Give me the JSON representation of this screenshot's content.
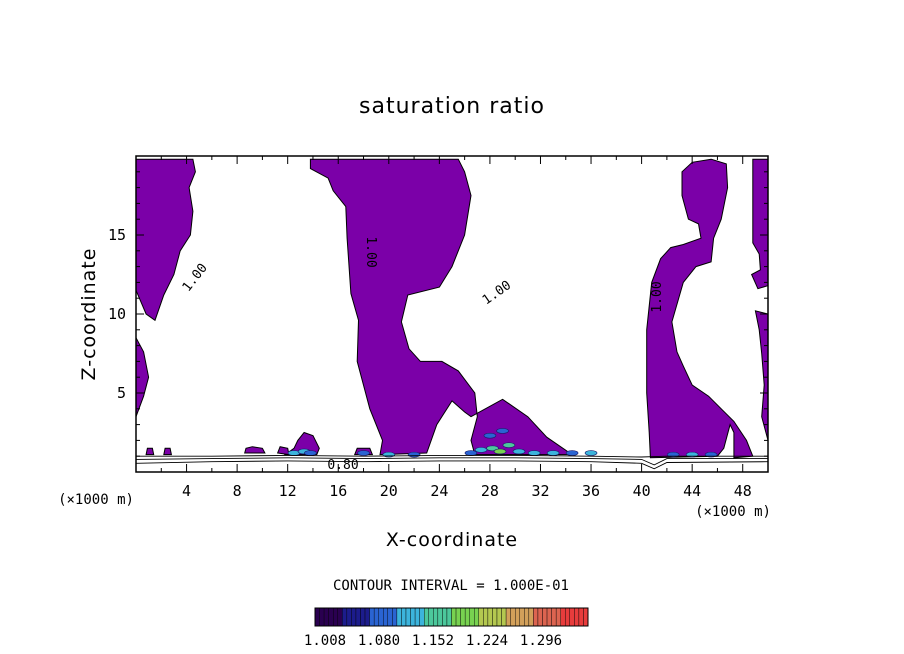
{
  "chart_data": {
    "type": "contour",
    "title": "saturation ratio",
    "xlabel": "X-coordinate",
    "ylabel": "Z-coordinate",
    "x_unit": "(×1000 m)",
    "x_unit_right": "(×1000 m)",
    "xlim": [
      0,
      50
    ],
    "ylim": [
      0,
      20
    ],
    "x_ticks": [
      4,
      8,
      12,
      16,
      20,
      24,
      28,
      32,
      36,
      40,
      44,
      48
    ],
    "y_ticks": [
      5,
      10,
      15
    ],
    "contour_interval_label": "CONTOUR INTERVAL = 1.000E-01",
    "contour_labels": [
      "1.00",
      "1.00",
      "1.00",
      "1.00",
      "0.80"
    ],
    "colorbar_labels": [
      "1.008",
      "1.080",
      "1.152",
      "1.224",
      "1.296"
    ],
    "fill_color": "#7b00a8",
    "colorbar_colors": [
      "#2a0050",
      "#1c1c8c",
      "#2a64d2",
      "#3cb4dc",
      "#4cc89c",
      "#78d250",
      "#b4c850",
      "#d2a05a",
      "#dc6450",
      "#e83c3c"
    ],
    "regions": [
      {
        "name": "left-top",
        "points": [
          [
            0,
            19.8
          ],
          [
            4.5,
            19.8
          ],
          [
            4.7,
            19
          ],
          [
            4.2,
            18
          ],
          [
            4.5,
            16.5
          ],
          [
            4.3,
            15
          ],
          [
            3.5,
            14
          ],
          [
            3,
            12.5
          ],
          [
            2.2,
            11.2
          ],
          [
            1.5,
            9.6
          ],
          [
            0.8,
            10
          ],
          [
            0,
            11.5
          ]
        ]
      },
      {
        "name": "left-low",
        "points": [
          [
            0,
            8.5
          ],
          [
            0.6,
            7.6
          ],
          [
            1,
            6
          ],
          [
            0.6,
            4.8
          ],
          [
            0,
            3.5
          ]
        ]
      },
      {
        "name": "center",
        "points": [
          [
            13.8,
            19.8
          ],
          [
            25.5,
            19.8
          ],
          [
            26,
            19
          ],
          [
            26.5,
            17.5
          ],
          [
            26,
            15
          ],
          [
            25,
            13
          ],
          [
            24,
            11.7
          ],
          [
            21.5,
            11.2
          ],
          [
            21,
            9.5
          ],
          [
            21.6,
            7.8
          ],
          [
            22.5,
            7
          ],
          [
            24.2,
            7
          ],
          [
            25.5,
            6.4
          ],
          [
            26.8,
            5
          ],
          [
            27,
            3.5
          ],
          [
            26.5,
            2
          ],
          [
            26.8,
            1.1
          ],
          [
            34.5,
            1.1
          ],
          [
            32.5,
            2.2
          ],
          [
            31,
            3.5
          ],
          [
            29,
            4.6
          ],
          [
            26.5,
            3.5
          ],
          [
            26,
            3.8
          ],
          [
            25,
            4.5
          ],
          [
            23.8,
            3
          ],
          [
            23,
            1.2
          ],
          [
            19.3,
            1.1
          ],
          [
            19.5,
            2
          ],
          [
            18.5,
            4
          ],
          [
            17.5,
            7
          ],
          [
            17.6,
            9.6
          ],
          [
            17,
            11.3
          ],
          [
            16.7,
            14.8
          ],
          [
            16.6,
            16.8
          ],
          [
            15.6,
            17.8
          ],
          [
            15.2,
            18.6
          ],
          [
            13.8,
            19.2
          ]
        ]
      },
      {
        "name": "right",
        "points": [
          [
            45.5,
            19.8
          ],
          [
            46.7,
            19.5
          ],
          [
            46.8,
            18
          ],
          [
            46.3,
            16
          ],
          [
            45.7,
            14.8
          ],
          [
            45.5,
            13.3
          ],
          [
            44.3,
            13
          ],
          [
            43.3,
            12
          ],
          [
            42.4,
            9.5
          ],
          [
            42.8,
            7.6
          ],
          [
            43.3,
            6.7
          ],
          [
            44,
            5.5
          ],
          [
            45.3,
            4.8
          ],
          [
            46.3,
            4
          ],
          [
            47.3,
            3.2
          ],
          [
            48.3,
            2
          ],
          [
            48.8,
            1
          ],
          [
            47.3,
            0.9
          ],
          [
            47.3,
            2.5
          ],
          [
            47,
            3
          ],
          [
            46.5,
            1.5
          ],
          [
            46,
            1
          ],
          [
            40.7,
            0.9
          ],
          [
            40.6,
            2.5
          ],
          [
            40.4,
            5
          ],
          [
            40.4,
            9
          ],
          [
            40.8,
            12
          ],
          [
            41.5,
            13.5
          ],
          [
            42.3,
            14.2
          ],
          [
            43.3,
            14.4
          ],
          [
            44.7,
            14.8
          ],
          [
            44.5,
            15.7
          ],
          [
            43.7,
            16
          ],
          [
            43.2,
            17.5
          ],
          [
            43.2,
            19
          ],
          [
            44,
            19.6
          ]
        ]
      },
      {
        "name": "right-edge-top",
        "points": [
          [
            48.8,
            19.8
          ],
          [
            50,
            19.8
          ],
          [
            50,
            11.8
          ],
          [
            49.2,
            11.6
          ],
          [
            48.7,
            12.5
          ],
          [
            49.4,
            12.8
          ],
          [
            49.3,
            13.8
          ],
          [
            48.8,
            14.5
          ]
        ]
      },
      {
        "name": "right-edge-low",
        "points": [
          [
            49,
            10.2
          ],
          [
            50,
            10
          ],
          [
            50,
            2
          ],
          [
            49.5,
            3.5
          ],
          [
            49.7,
            5.5
          ],
          [
            49.5,
            7.5
          ],
          [
            49.3,
            9
          ]
        ]
      },
      {
        "name": "blob-13",
        "points": [
          [
            11.8,
            1.1
          ],
          [
            12.5,
            1.5
          ],
          [
            12.8,
            2
          ],
          [
            13.3,
            2.5
          ],
          [
            14,
            2.3
          ],
          [
            14.5,
            1.5
          ],
          [
            14.3,
            1.1
          ]
        ]
      },
      {
        "name": "blob-9",
        "points": [
          [
            8.6,
            1.2
          ],
          [
            8.7,
            1.5
          ],
          [
            9.2,
            1.6
          ],
          [
            10,
            1.5
          ],
          [
            10.2,
            1.2
          ]
        ]
      },
      {
        "name": "blob-17",
        "points": [
          [
            17.3,
            1.1
          ],
          [
            17.5,
            1.5
          ],
          [
            18.5,
            1.5
          ],
          [
            18.7,
            1.1
          ]
        ]
      },
      {
        "name": "blob-12",
        "points": [
          [
            11.2,
            1.2
          ],
          [
            11.4,
            1.6
          ],
          [
            12,
            1.5
          ],
          [
            12.1,
            1.1
          ]
        ]
      },
      {
        "name": "blob-1",
        "points": [
          [
            0.8,
            1.1
          ],
          [
            0.9,
            1.5
          ],
          [
            1.3,
            1.5
          ],
          [
            1.4,
            1.1
          ]
        ]
      },
      {
        "name": "blob-3",
        "points": [
          [
            2.2,
            1.1
          ],
          [
            2.3,
            1.5
          ],
          [
            2.7,
            1.5
          ],
          [
            2.8,
            1.1
          ]
        ]
      }
    ],
    "contours": [
      {
        "name": "band-1",
        "points": [
          [
            0,
            0.55
          ],
          [
            6,
            0.65
          ],
          [
            12,
            0.7
          ],
          [
            18,
            0.65
          ],
          [
            24,
            0.7
          ],
          [
            30,
            0.7
          ],
          [
            36,
            0.65
          ],
          [
            40,
            0.55
          ],
          [
            41,
            0.2
          ],
          [
            42,
            0.6
          ],
          [
            50,
            0.65
          ]
        ]
      },
      {
        "name": "band-2",
        "points": [
          [
            0,
            0.8
          ],
          [
            6,
            0.85
          ],
          [
            12,
            0.9
          ],
          [
            18,
            0.85
          ],
          [
            24,
            0.9
          ],
          [
            30,
            0.9
          ],
          [
            36,
            0.85
          ],
          [
            40,
            0.8
          ],
          [
            41,
            0.45
          ],
          [
            42,
            0.85
          ],
          [
            50,
            0.85
          ]
        ]
      },
      {
        "name": "band-3",
        "points": [
          [
            0,
            1.0
          ],
          [
            6,
            1.0
          ],
          [
            12,
            1.05
          ],
          [
            18,
            1.0
          ],
          [
            24,
            1.05
          ],
          [
            30,
            1.05
          ],
          [
            36,
            1.0
          ],
          [
            40,
            0.95
          ],
          [
            42,
            1.0
          ],
          [
            50,
            1.0
          ]
        ]
      }
    ],
    "hotspots": [
      {
        "x": 26.5,
        "z": 1.2,
        "c": 2
      },
      {
        "x": 27.3,
        "z": 1.4,
        "c": 3
      },
      {
        "x": 28.2,
        "z": 1.5,
        "c": 4
      },
      {
        "x": 28.8,
        "z": 1.3,
        "c": 5
      },
      {
        "x": 29.5,
        "z": 1.7,
        "c": 4
      },
      {
        "x": 30.3,
        "z": 1.3,
        "c": 3
      },
      {
        "x": 28,
        "z": 2.3,
        "c": 2
      },
      {
        "x": 29,
        "z": 2.6,
        "c": 2
      },
      {
        "x": 31.5,
        "z": 1.2,
        "c": 3
      },
      {
        "x": 33,
        "z": 1.2,
        "c": 3
      },
      {
        "x": 34.5,
        "z": 1.2,
        "c": 2
      },
      {
        "x": 36,
        "z": 1.2,
        "c": 3
      },
      {
        "x": 12.5,
        "z": 1.2,
        "c": 3
      },
      {
        "x": 13.3,
        "z": 1.3,
        "c": 3
      },
      {
        "x": 13.8,
        "z": 1.2,
        "c": 2
      },
      {
        "x": 20,
        "z": 1.1,
        "c": 3
      },
      {
        "x": 22,
        "z": 1.1,
        "c": 2
      },
      {
        "x": 42.5,
        "z": 1.1,
        "c": 2
      },
      {
        "x": 44,
        "z": 1.1,
        "c": 3
      },
      {
        "x": 45.5,
        "z": 1.1,
        "c": 2
      },
      {
        "x": 18,
        "z": 1.2,
        "c": 2
      }
    ]
  }
}
